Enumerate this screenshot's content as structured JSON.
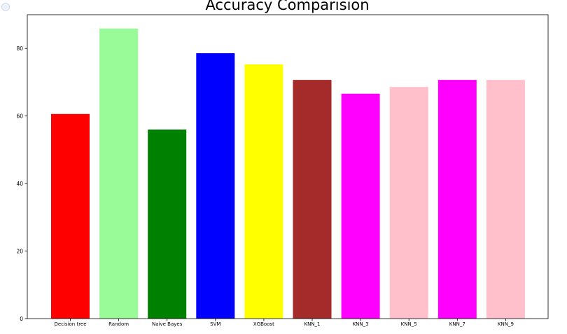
{
  "chart_data": {
    "type": "bar",
    "title": "Accuracy Comparision",
    "xlabel": "",
    "ylabel": "",
    "categories": [
      "Decision tree",
      "Random",
      "Naive Bayes",
      "SVM",
      "XGBoost",
      "KNN_1",
      "KNN_3",
      "KNN_5",
      "KNN_7",
      "KNN_9"
    ],
    "values": [
      60.6,
      85.9,
      56.0,
      78.6,
      75.3,
      70.7,
      66.6,
      68.6,
      70.7,
      70.7
    ],
    "colors": [
      "#ff0000",
      "#98fb98",
      "#008000",
      "#0000ff",
      "#ffff00",
      "#a52a2a",
      "#ff00ff",
      "#ffc0cb",
      "#ff00ff",
      "#ffc0cb"
    ],
    "ylim": [
      0,
      90
    ],
    "yticks": [
      0,
      20,
      40,
      60,
      80
    ],
    "grid": false,
    "legend": "none"
  }
}
